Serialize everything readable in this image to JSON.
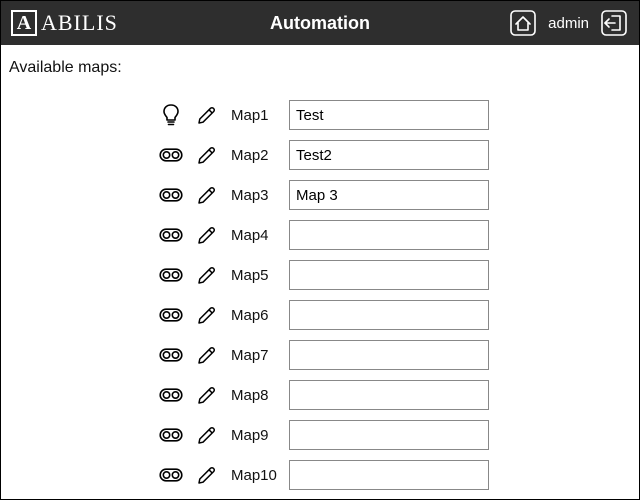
{
  "header": {
    "logo_letter": "A",
    "brand": "ABILIS",
    "title": "Automation",
    "user": "admin"
  },
  "section_label": "Available maps:",
  "maps": [
    {
      "type": "bulb",
      "label": "Map1",
      "value": "Test"
    },
    {
      "type": "toggle",
      "label": "Map2",
      "value": "Test2"
    },
    {
      "type": "toggle",
      "label": "Map3",
      "value": "Map 3"
    },
    {
      "type": "toggle",
      "label": "Map4",
      "value": ""
    },
    {
      "type": "toggle",
      "label": "Map5",
      "value": ""
    },
    {
      "type": "toggle",
      "label": "Map6",
      "value": ""
    },
    {
      "type": "toggle",
      "label": "Map7",
      "value": ""
    },
    {
      "type": "toggle",
      "label": "Map8",
      "value": ""
    },
    {
      "type": "toggle",
      "label": "Map9",
      "value": ""
    },
    {
      "type": "toggle",
      "label": "Map10",
      "value": ""
    }
  ],
  "colors": {
    "header_bg": "#2e2e2e",
    "text": "#111111",
    "border": "#888888"
  }
}
